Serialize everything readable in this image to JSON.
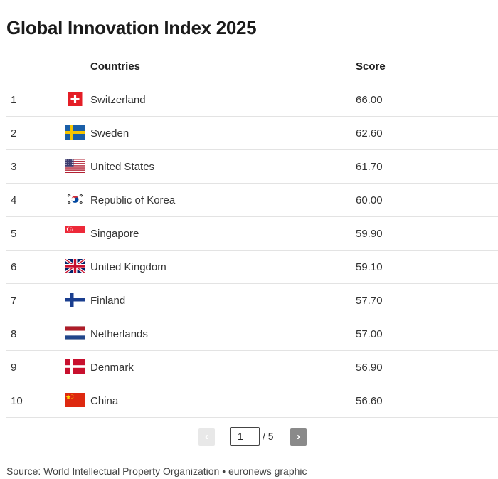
{
  "title": "Global Innovation Index 2025",
  "table": {
    "headers": {
      "country": "Countries",
      "score": "Score"
    }
  },
  "chart_data": {
    "type": "table",
    "title": "Global Innovation Index 2025",
    "columns": [
      "",
      "Countries",
      "Score"
    ],
    "rows": [
      {
        "rank": "1",
        "country": "Switzerland",
        "score": "66.00",
        "flag": "switzerland-flag-icon"
      },
      {
        "rank": "2",
        "country": "Sweden",
        "score": "62.60",
        "flag": "sweden-flag-icon"
      },
      {
        "rank": "3",
        "country": "United States",
        "score": "61.70",
        "flag": "united-states-flag-icon"
      },
      {
        "rank": "4",
        "country": "Republic of Korea",
        "score": "60.00",
        "flag": "south-korea-flag-icon"
      },
      {
        "rank": "5",
        "country": "Singapore",
        "score": "59.90",
        "flag": "singapore-flag-icon"
      },
      {
        "rank": "6",
        "country": "United Kingdom",
        "score": "59.10",
        "flag": "united-kingdom-flag-icon"
      },
      {
        "rank": "7",
        "country": "Finland",
        "score": "57.70",
        "flag": "finland-flag-icon"
      },
      {
        "rank": "8",
        "country": "Netherlands",
        "score": "57.00",
        "flag": "netherlands-flag-icon"
      },
      {
        "rank": "9",
        "country": "Denmark",
        "score": "56.90",
        "flag": "denmark-flag-icon"
      },
      {
        "rank": "10",
        "country": "China",
        "score": "56.60",
        "flag": "china-flag-icon"
      }
    ]
  },
  "pagination": {
    "prev_label": "‹",
    "current_page": "1",
    "total_label": "/ 5",
    "next_label": "›"
  },
  "source": "Source: World Intellectual Property Organization • euronews graphic",
  "colors": {
    "divider": "#e3e3e3",
    "next_button": "#8a8a8a",
    "prev_button_disabled": "#e8e8e8"
  }
}
